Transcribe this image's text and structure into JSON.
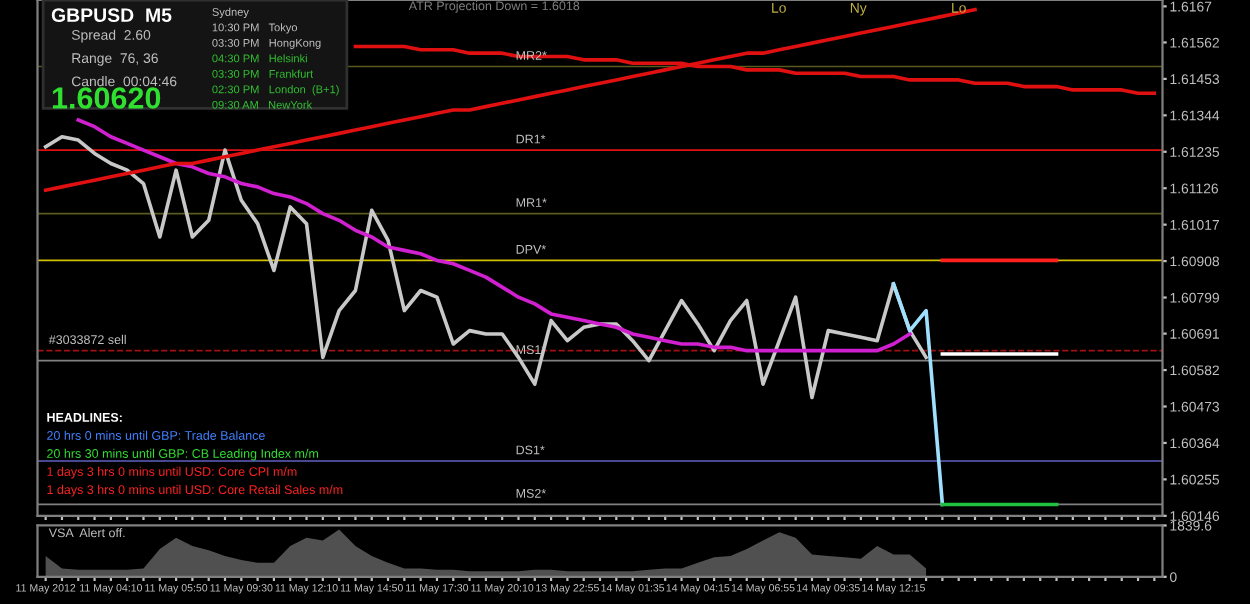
{
  "chart_data": [
    {
      "type": "line",
      "tick_labels": "y",
      "categories": [
        null,
        null,
        null,
        null,
        null,
        null,
        null,
        null,
        null,
        null,
        null,
        null,
        null,
        null,
        null,
        null,
        null,
        null,
        null,
        null,
        null,
        null,
        null,
        null,
        null,
        null,
        null,
        null,
        null,
        null,
        null,
        null,
        null,
        null,
        null,
        null,
        null,
        null,
        null,
        null,
        null,
        null,
        null,
        null,
        null,
        null,
        null,
        null,
        null,
        null,
        null,
        null,
        null,
        null,
        null,
        null,
        null,
        null,
        null,
        null,
        null,
        null,
        null,
        null,
        null,
        null,
        null,
        null,
        null
      ],
      "ylim": [
        1.60146,
        1.61689
      ],
      "yticks": [
        1.60146,
        1.60255,
        1.60364,
        1.60473,
        1.60582,
        1.60691,
        1.60799,
        1.60908,
        1.61017,
        1.61126,
        1.61235,
        1.61344,
        1.61453,
        1.61562,
        1.6167
      ],
      "series": [
        {
          "color": "#e01010",
          "values": [
            null,
            null,
            null,
            null,
            null,
            null,
            null,
            null,
            null,
            null,
            null,
            null,
            null,
            null,
            null,
            null,
            null,
            null,
            null,
            1.6155,
            1.6155,
            1.6155,
            1.6155,
            1.6154,
            1.6154,
            1.6154,
            1.6153,
            1.6153,
            1.6153,
            1.6152,
            1.6152,
            1.6152,
            1.6152,
            1.6151,
            1.6151,
            1.6151,
            1.615,
            1.615,
            1.615,
            1.615,
            1.6149,
            1.6149,
            1.6149,
            1.6148,
            1.6148,
            1.6148,
            1.6147,
            1.6147,
            1.6147,
            1.6147,
            1.6146,
            1.6146,
            1.6146,
            1.6145,
            1.6145,
            1.6145,
            1.6145,
            1.6144,
            1.6144,
            1.6144,
            1.6143,
            1.6143,
            1.6143,
            1.6142,
            1.6142,
            1.6142,
            1.6142,
            1.6141,
            1.6141
          ]
        },
        {
          "color": "#c8c8c8",
          "values": [
            1.6125,
            1.6128,
            1.6127,
            1.6123,
            1.612,
            1.6118,
            1.6114,
            1.6098,
            1.6118,
            1.6098,
            1.6103,
            1.6124,
            1.6109,
            1.6102,
            1.6088,
            1.6107,
            1.6102,
            1.6062,
            1.6076,
            1.6082,
            1.6106,
            1.6097,
            1.6076,
            1.6082,
            1.608,
            1.6066,
            1.607,
            1.6069,
            1.6069,
            1.6062,
            1.6054,
            1.6073,
            1.6067,
            1.6071,
            1.6072,
            1.6072,
            1.6067,
            1.6061,
            1.607,
            1.6079,
            1.6072,
            1.6064,
            1.6073,
            1.6079,
            1.6054,
            1.6067,
            1.608,
            1.605,
            1.607,
            1.6069,
            1.6068,
            1.6067,
            1.6084,
            1.607,
            1.6062,
            null,
            null,
            null,
            null,
            null,
            null,
            null,
            null,
            null,
            null,
            null,
            null,
            null,
            null
          ]
        },
        {
          "color": "#d020d0",
          "values": [
            null,
            null,
            1.6133,
            1.6131,
            1.6128,
            1.6126,
            1.6124,
            1.6122,
            1.612,
            1.6119,
            1.6117,
            1.6116,
            1.6114,
            1.6113,
            1.6111,
            1.611,
            1.6108,
            1.6105,
            1.6103,
            1.61,
            1.6098,
            1.6095,
            1.6094,
            1.6093,
            1.6091,
            1.609,
            1.6088,
            1.6086,
            1.6083,
            1.608,
            1.6078,
            1.6075,
            1.6074,
            1.6073,
            1.6072,
            1.6071,
            1.6069,
            1.6068,
            1.6067,
            1.6066,
            1.6066,
            1.6065,
            1.6065,
            1.6064,
            1.6064,
            1.6064,
            1.6064,
            1.6064,
            1.6064,
            1.6064,
            1.6064,
            1.6064,
            1.6066,
            1.6069,
            null,
            null,
            null,
            null,
            null,
            null,
            null,
            null,
            null,
            null,
            null,
            null,
            null,
            null,
            null
          ]
        },
        {
          "color": "#e01010",
          "values": [
            1.6112,
            1.6113,
            1.6114,
            1.6115,
            1.6116,
            1.6117,
            1.6118,
            1.6119,
            1.612,
            1.612,
            1.6121,
            1.6122,
            1.6123,
            1.6124,
            1.6125,
            1.6126,
            1.6127,
            1.6128,
            1.6129,
            1.613,
            1.6131,
            1.6132,
            1.6133,
            1.6134,
            1.6135,
            1.6136,
            1.6136,
            1.6137,
            1.6138,
            1.6139,
            1.614,
            1.6141,
            1.6142,
            1.6143,
            1.6144,
            1.6145,
            1.6146,
            1.6147,
            1.6148,
            1.6149,
            1.615,
            1.6151,
            1.6152,
            1.6153,
            1.6153,
            1.6154,
            1.6155,
            1.6156,
            1.6157,
            1.6158,
            1.6159,
            1.616,
            1.6161,
            1.6162,
            1.6163,
            1.6164,
            1.6165,
            1.6166,
            null,
            null,
            null,
            null,
            null,
            null,
            null,
            null,
            null,
            null,
            null
          ]
        },
        {
          "color": "#a0e0ff",
          "values": [
            null,
            null,
            null,
            null,
            null,
            null,
            null,
            null,
            null,
            null,
            null,
            null,
            null,
            null,
            null,
            null,
            null,
            null,
            null,
            null,
            null,
            null,
            null,
            null,
            null,
            null,
            null,
            null,
            null,
            null,
            null,
            null,
            null,
            null,
            null,
            null,
            null,
            null,
            null,
            null,
            null,
            null,
            null,
            null,
            null,
            null,
            null,
            null,
            null,
            null,
            null,
            null,
            1.6084,
            1.607,
            1.6076,
            1.6018,
            null,
            null,
            null,
            null,
            null,
            null,
            null,
            null,
            null,
            null,
            null,
            null,
            null
          ]
        },
        {
          "color": "#ff2020",
          "values": [
            null,
            null,
            null,
            null,
            null,
            null,
            null,
            null,
            null,
            null,
            null,
            null,
            null,
            null,
            null,
            null,
            null,
            null,
            null,
            null,
            null,
            null,
            null,
            null,
            null,
            null,
            null,
            null,
            null,
            null,
            null,
            null,
            null,
            null,
            null,
            null,
            null,
            null,
            null,
            null,
            null,
            null,
            null,
            null,
            null,
            null,
            null,
            null,
            null,
            null,
            null,
            null,
            null,
            null,
            null,
            1.6091,
            1.6091,
            1.6091,
            1.6091,
            1.6091,
            1.6091,
            1.6091,
            1.6091,
            null,
            null,
            null,
            null,
            null,
            null
          ]
        },
        {
          "color": "#ffffff",
          "values": [
            null,
            null,
            null,
            null,
            null,
            null,
            null,
            null,
            null,
            null,
            null,
            null,
            null,
            null,
            null,
            null,
            null,
            null,
            null,
            null,
            null,
            null,
            null,
            null,
            null,
            null,
            null,
            null,
            null,
            null,
            null,
            null,
            null,
            null,
            null,
            null,
            null,
            null,
            null,
            null,
            null,
            null,
            null,
            null,
            null,
            null,
            null,
            null,
            null,
            null,
            null,
            null,
            null,
            null,
            null,
            1.6063,
            1.6063,
            1.6063,
            1.6063,
            1.6063,
            1.6063,
            1.6063,
            1.6063,
            null,
            null,
            null,
            null,
            null,
            null
          ]
        },
        {
          "color": "#20c040",
          "values": [
            null,
            null,
            null,
            null,
            null,
            null,
            null,
            null,
            null,
            null,
            null,
            null,
            null,
            null,
            null,
            null,
            null,
            null,
            null,
            null,
            null,
            null,
            null,
            null,
            null,
            null,
            null,
            null,
            null,
            null,
            null,
            null,
            null,
            null,
            null,
            null,
            null,
            null,
            null,
            null,
            null,
            null,
            null,
            null,
            null,
            null,
            null,
            null,
            null,
            null,
            null,
            null,
            null,
            null,
            null,
            1.6018,
            1.6018,
            1.6018,
            1.6018,
            1.6018,
            1.6018,
            1.6018,
            1.6018,
            null,
            null,
            null,
            null,
            null,
            null
          ]
        }
      ],
      "ref_lines": [
        {
          "axis": "y",
          "value": 1.6149,
          "label": "MR2*",
          "color": "#5a5a20"
        },
        {
          "axis": "y",
          "value": 1.6124,
          "label": "DR1*",
          "color": "#e01010"
        },
        {
          "axis": "y",
          "value": 1.6105,
          "label": "MR1*",
          "color": "#5a5a20"
        },
        {
          "axis": "y",
          "value": 1.6091,
          "label": "DPV*",
          "color": "#d0c000"
        },
        {
          "axis": "y",
          "value": 1.6061,
          "label": "MS1*",
          "color": "#808080"
        },
        {
          "axis": "y",
          "value": 1.6031,
          "label": "DS1*",
          "color": "#6060c0"
        },
        {
          "axis": "y",
          "value": 1.6018,
          "label": "MS2*",
          "color": "#808080"
        },
        {
          "axis": "y",
          "value": 1.6064,
          "label": "#3033872 sell",
          "color": "#a01010",
          "line_style": "dashed"
        }
      ],
      "annotations": [
        "GBPUSD  M5",
        "Spread  2.60",
        "Range  76, 36",
        "Candle  00:04:46",
        "1.60620",
        "Sydney",
        "10:30 PM   Tokyo",
        "03:30 PM   HongKong",
        "04:30 PM   Helsinki",
        "03:30 PM   Frankfurt",
        "02:30 PM   London  (B+1)",
        "09:30 AM   NewYork",
        "ATR Projection Down = 1.6018",
        "HEADLINES:",
        "20 hrs 0 mins until GBP: Trade Balance",
        "20 hrs 30 mins until GBP: CB Leading Index m/m",
        "1 days 3 hrs 0 mins until USD: Core CPI m/m",
        "1 days 3 hrs 0 mins until USD: Core Retail Sales m/m",
        "Lo",
        "Ny",
        "Lo"
      ]
    },
    {
      "type": "area",
      "color": "#505050",
      "ylim": [
        0,
        1839.6
      ],
      "yticks": [
        0,
        1839.6
      ],
      "categories": [
        "11 May 2012",
        null,
        null,
        null,
        "11 May 04:10",
        null,
        null,
        null,
        "11 May 05:50",
        null,
        null,
        null,
        "11 May 09:30",
        null,
        null,
        null,
        "11 May 12:10",
        null,
        null,
        null,
        "11 May 14:50",
        null,
        null,
        null,
        "11 May 17:30",
        null,
        null,
        null,
        "11 May 20:10",
        null,
        null,
        null,
        "13 May 22:55",
        null,
        null,
        null,
        "14 May 01:35",
        null,
        null,
        null,
        "14 May 04:15",
        null,
        null,
        null,
        "14 May 06:55",
        null,
        null,
        null,
        "14 May 09:35",
        null,
        null,
        null,
        "14 May 12:15",
        null,
        null,
        null,
        null,
        null,
        null,
        null,
        null,
        null,
        null,
        null,
        null,
        null,
        null,
        null,
        null
      ],
      "values": [
        750,
        300,
        250,
        250,
        250,
        250,
        300,
        1000,
        1400,
        1100,
        950,
        750,
        600,
        500,
        500,
        1100,
        1400,
        1300,
        1700,
        1100,
        750,
        500,
        300,
        300,
        250,
        250,
        200,
        200,
        200,
        200,
        250,
        250,
        200,
        200,
        200,
        200,
        200,
        250,
        300,
        300,
        500,
        700,
        750,
        1000,
        1300,
        1600,
        1400,
        800,
        750,
        700,
        650,
        1100,
        800,
        800,
        300,
        null,
        null,
        null,
        null,
        null,
        null,
        null,
        null,
        null,
        null,
        null,
        null,
        null,
        null
      ],
      "annotations": [
        "VSA  Alert off."
      ]
    }
  ]
}
